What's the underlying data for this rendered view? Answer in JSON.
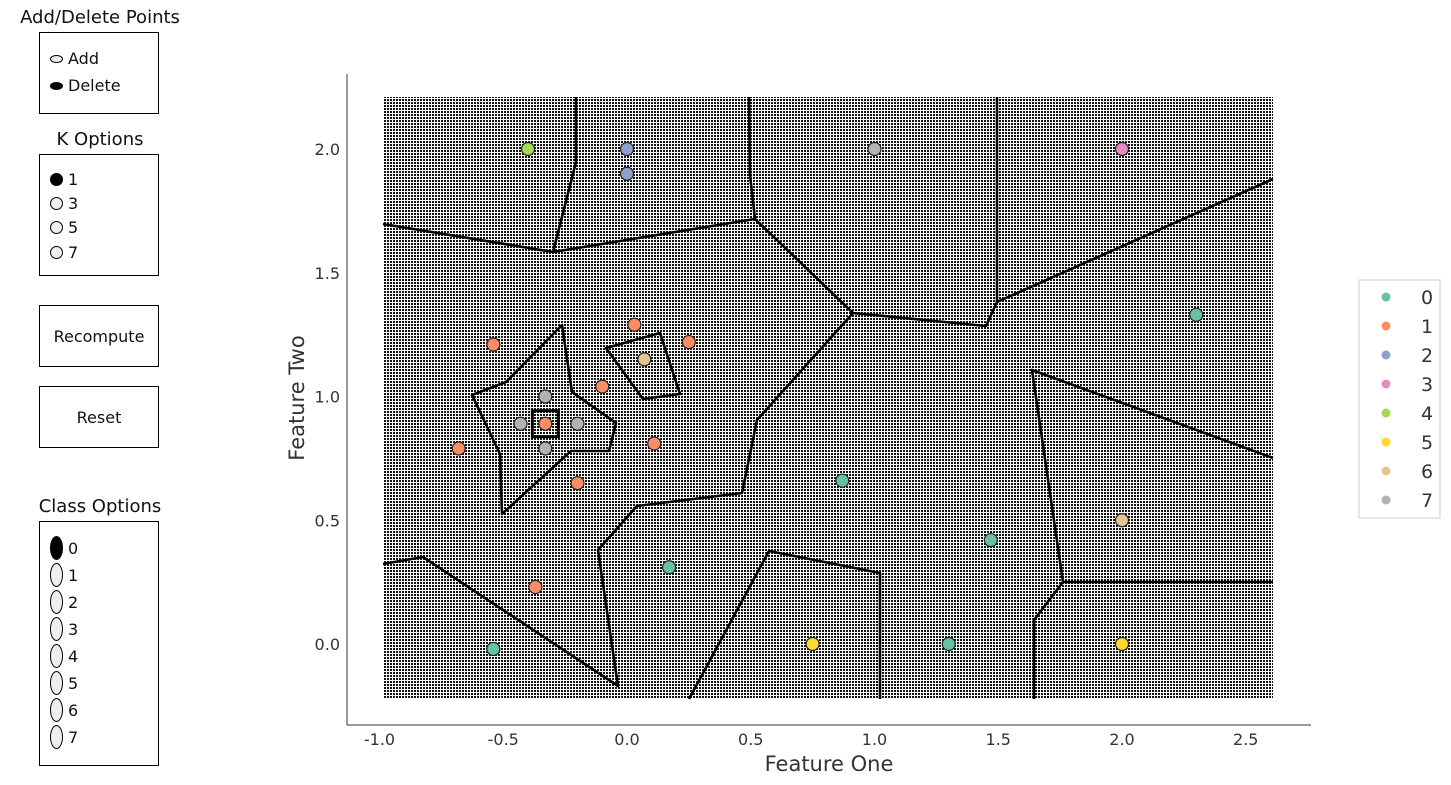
{
  "widgets": {
    "add_delete": {
      "title": "Add/Delete Points",
      "options": [
        "Add",
        "Delete"
      ],
      "selected": "Delete"
    },
    "k_options": {
      "title": "K Options",
      "options": [
        "1",
        "3",
        "5",
        "7"
      ],
      "selected": "1"
    },
    "recompute_label": "Recompute",
    "reset_label": "Reset",
    "class_options": {
      "title": "Class Options",
      "options": [
        "0",
        "1",
        "2",
        "3",
        "4",
        "5",
        "6",
        "7"
      ],
      "selected": "0"
    }
  },
  "chart_data": {
    "type": "scatter",
    "title": "",
    "xlabel": "Feature One",
    "ylabel": "Feature Two",
    "xlim": [
      -1.0,
      2.6
    ],
    "ylim": [
      -0.25,
      2.2
    ],
    "xticks": [
      "-1.0",
      "-0.5",
      "0.0",
      "0.5",
      "1.0",
      "1.5",
      "2.0",
      "2.5"
    ],
    "yticks": [
      "0.0",
      "0.5",
      "1.0",
      "1.5",
      "2.0"
    ],
    "legend_position": "right",
    "class_colors": {
      "0": "#66c2a5",
      "1": "#fc8d62",
      "2": "#8da0cb",
      "3": "#e78ac3",
      "4": "#a6d854",
      "5": "#ffd92f",
      "6": "#e5c494",
      "7": "#b3b3b3"
    },
    "legend": [
      "0",
      "1",
      "2",
      "3",
      "4",
      "5",
      "6",
      "7"
    ],
    "points": [
      {
        "x": -0.4,
        "y": 2.0,
        "c": 4
      },
      {
        "x": 0.0,
        "y": 2.0,
        "c": 2
      },
      {
        "x": 0.0,
        "y": 1.9,
        "c": 2
      },
      {
        "x": 1.0,
        "y": 2.0,
        "c": 7
      },
      {
        "x": 2.0,
        "y": 2.0,
        "c": 3
      },
      {
        "x": 2.3,
        "y": 1.33,
        "c": 0
      },
      {
        "x": 0.03,
        "y": 1.29,
        "c": 1
      },
      {
        "x": -0.54,
        "y": 1.21,
        "c": 1
      },
      {
        "x": 0.25,
        "y": 1.22,
        "c": 1
      },
      {
        "x": 0.07,
        "y": 1.15,
        "c": 6
      },
      {
        "x": -0.1,
        "y": 1.04,
        "c": 1
      },
      {
        "x": -0.33,
        "y": 1.0,
        "c": 7
      },
      {
        "x": -0.43,
        "y": 0.89,
        "c": 7
      },
      {
        "x": -0.2,
        "y": 0.89,
        "c": 7
      },
      {
        "x": -0.33,
        "y": 0.89,
        "c": 1
      },
      {
        "x": -0.33,
        "y": 0.79,
        "c": 7
      },
      {
        "x": -0.68,
        "y": 0.79,
        "c": 1
      },
      {
        "x": 0.11,
        "y": 0.81,
        "c": 1
      },
      {
        "x": -0.2,
        "y": 0.65,
        "c": 1
      },
      {
        "x": 0.87,
        "y": 0.66,
        "c": 0
      },
      {
        "x": 1.47,
        "y": 0.42,
        "c": 0
      },
      {
        "x": 2.0,
        "y": 0.5,
        "c": 6
      },
      {
        "x": 0.17,
        "y": 0.31,
        "c": 0
      },
      {
        "x": -0.37,
        "y": 0.23,
        "c": 1
      },
      {
        "x": -0.54,
        "y": -0.02,
        "c": 0
      },
      {
        "x": 0.75,
        "y": 0.0,
        "c": 5
      },
      {
        "x": 1.3,
        "y": 0.0,
        "c": 0
      },
      {
        "x": 2.0,
        "y": 0.0,
        "c": 5
      }
    ],
    "highlighted_point_index": 14
  }
}
